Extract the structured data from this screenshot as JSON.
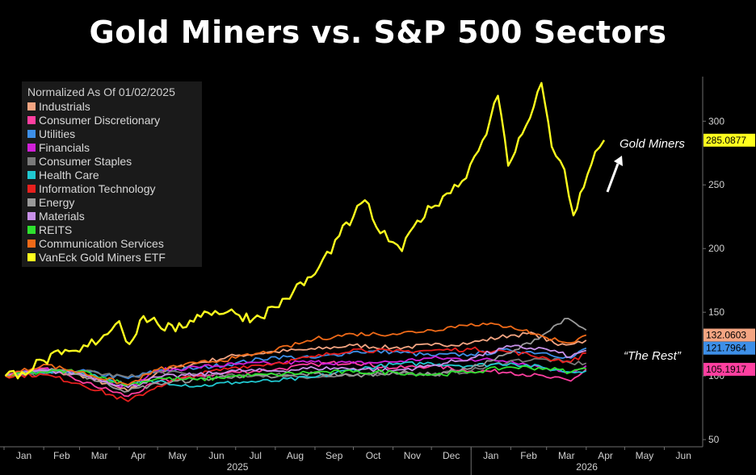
{
  "title": "Gold Miners vs. S&P 500 Sectors",
  "colors": {
    "background": "#000000",
    "axis": "#6e6e6e",
    "text": "#d0d0d0"
  },
  "annotations": {
    "gold_miners": "Gold Miners",
    "the_rest": "“The Rest”"
  },
  "chart_data": {
    "type": "line",
    "legend_title": "Normalized As Of 01/02/2025",
    "legend_position": "top-left",
    "grid": false,
    "x_ticks": [
      "Jan",
      "Feb",
      "Mar",
      "Apr",
      "May",
      "Jun",
      "Jul",
      "Aug",
      "Sep",
      "Oct",
      "Nov",
      "Dec",
      "Jan",
      "Feb",
      "Mar",
      "Apr",
      "May",
      "Jun"
    ],
    "x_year_labels": [
      "2025",
      "2026"
    ],
    "y_ticks": [
      50,
      100,
      150,
      200,
      250,
      300
    ],
    "ylim": [
      45,
      335
    ],
    "xlim": [
      "2025-01-01",
      "2026-07-01"
    ],
    "end_labels": [
      "285.0877",
      "132.0603",
      "121.7964",
      "105.1917"
    ],
    "series": [
      {
        "name": "Industrials",
        "color": "#f4a582",
        "values": [
          [
            "2025-01-02",
            100
          ],
          [
            "2025-02-01",
            103
          ],
          [
            "2025-03-01",
            101
          ],
          [
            "2025-04-08",
            88
          ],
          [
            "2025-05-01",
            103
          ],
          [
            "2025-06-01",
            110
          ],
          [
            "2025-07-01",
            116
          ],
          [
            "2025-08-01",
            119
          ],
          [
            "2025-09-01",
            121
          ],
          [
            "2025-10-01",
            124
          ],
          [
            "2025-11-01",
            122
          ],
          [
            "2025-12-01",
            124
          ],
          [
            "2026-01-01",
            126
          ],
          [
            "2026-02-01",
            132
          ],
          [
            "2026-02-20",
            133
          ],
          [
            "2026-03-10",
            124
          ],
          [
            "2026-04-01",
            128
          ]
        ]
      },
      {
        "name": "Consumer Discretionary",
        "color": "#ff3fa0",
        "values": [
          [
            "2025-01-02",
            100
          ],
          [
            "2025-02-01",
            106
          ],
          [
            "2025-03-01",
            96
          ],
          [
            "2025-04-08",
            84
          ],
          [
            "2025-05-01",
            95
          ],
          [
            "2025-06-01",
            100
          ],
          [
            "2025-07-01",
            103
          ],
          [
            "2025-08-01",
            105
          ],
          [
            "2025-09-01",
            109
          ],
          [
            "2025-10-01",
            111
          ],
          [
            "2025-11-01",
            106
          ],
          [
            "2025-12-01",
            108
          ],
          [
            "2026-01-01",
            104
          ],
          [
            "2026-02-01",
            103
          ],
          [
            "2026-03-01",
            99
          ],
          [
            "2026-03-20",
            96
          ],
          [
            "2026-04-01",
            105.19
          ]
        ]
      },
      {
        "name": "Utilities",
        "color": "#3d8fe8",
        "values": [
          [
            "2025-01-02",
            100
          ],
          [
            "2025-02-01",
            102
          ],
          [
            "2025-03-01",
            104
          ],
          [
            "2025-04-08",
            98
          ],
          [
            "2025-05-01",
            104
          ],
          [
            "2025-06-01",
            106
          ],
          [
            "2025-07-01",
            110
          ],
          [
            "2025-08-01",
            115
          ],
          [
            "2025-09-01",
            114
          ],
          [
            "2025-10-01",
            119
          ],
          [
            "2025-11-01",
            119
          ],
          [
            "2025-12-01",
            116
          ],
          [
            "2026-01-01",
            117
          ],
          [
            "2026-02-01",
            120
          ],
          [
            "2026-03-01",
            118
          ],
          [
            "2026-03-20",
            114
          ],
          [
            "2026-04-01",
            121.8
          ]
        ]
      },
      {
        "name": "Financials",
        "color": "#d020d8",
        "values": [
          [
            "2025-01-02",
            100
          ],
          [
            "2025-02-01",
            105
          ],
          [
            "2025-03-01",
            103
          ],
          [
            "2025-04-08",
            91
          ],
          [
            "2025-05-01",
            104
          ],
          [
            "2025-06-01",
            107
          ],
          [
            "2025-07-01",
            109
          ],
          [
            "2025-08-01",
            110
          ],
          [
            "2025-09-01",
            111
          ],
          [
            "2025-10-01",
            110
          ],
          [
            "2025-11-01",
            111
          ],
          [
            "2025-12-01",
            114
          ],
          [
            "2026-01-01",
            113
          ],
          [
            "2026-02-01",
            112
          ],
          [
            "2026-03-01",
            106
          ],
          [
            "2026-03-20",
            103
          ],
          [
            "2026-04-01",
            108
          ]
        ]
      },
      {
        "name": "Consumer Staples",
        "color": "#7a7a7a",
        "values": [
          [
            "2025-01-02",
            100
          ],
          [
            "2025-02-01",
            101
          ],
          [
            "2025-03-01",
            104
          ],
          [
            "2025-04-08",
            99
          ],
          [
            "2025-05-01",
            103
          ],
          [
            "2025-06-01",
            101
          ],
          [
            "2025-07-01",
            100
          ],
          [
            "2025-08-01",
            101
          ],
          [
            "2025-09-01",
            99
          ],
          [
            "2025-10-01",
            100
          ],
          [
            "2025-11-01",
            103
          ],
          [
            "2025-12-01",
            101
          ],
          [
            "2026-01-01",
            104
          ],
          [
            "2026-02-01",
            112
          ],
          [
            "2026-03-01",
            113
          ],
          [
            "2026-03-20",
            110
          ],
          [
            "2026-04-01",
            110
          ]
        ]
      },
      {
        "name": "Health Care",
        "color": "#20c8d0",
        "values": [
          [
            "2025-01-02",
            100
          ],
          [
            "2025-02-01",
            104
          ],
          [
            "2025-03-01",
            103
          ],
          [
            "2025-04-08",
            93
          ],
          [
            "2025-05-01",
            96
          ],
          [
            "2025-06-01",
            92
          ],
          [
            "2025-07-01",
            95
          ],
          [
            "2025-08-01",
            96
          ],
          [
            "2025-09-01",
            99
          ],
          [
            "2025-10-01",
            105
          ],
          [
            "2025-11-01",
            109
          ],
          [
            "2025-12-01",
            110
          ],
          [
            "2026-01-01",
            108
          ],
          [
            "2026-02-01",
            110
          ],
          [
            "2026-03-01",
            106
          ],
          [
            "2026-03-20",
            103
          ],
          [
            "2026-04-01",
            104
          ]
        ]
      },
      {
        "name": "Information Technology",
        "color": "#e8201e",
        "values": [
          [
            "2025-01-02",
            100
          ],
          [
            "2025-02-01",
            101
          ],
          [
            "2025-03-01",
            94
          ],
          [
            "2025-04-08",
            80
          ],
          [
            "2025-05-01",
            92
          ],
          [
            "2025-06-01",
            101
          ],
          [
            "2025-07-01",
            107
          ],
          [
            "2025-08-01",
            110
          ],
          [
            "2025-09-01",
            115
          ],
          [
            "2025-10-01",
            121
          ],
          [
            "2025-11-01",
            119
          ],
          [
            "2025-12-01",
            120
          ],
          [
            "2026-01-01",
            121
          ],
          [
            "2026-02-01",
            119
          ],
          [
            "2026-03-01",
            114
          ],
          [
            "2026-03-20",
            111
          ],
          [
            "2026-04-01",
            118
          ]
        ]
      },
      {
        "name": "Energy",
        "color": "#9a9a9a",
        "values": [
          [
            "2025-01-02",
            100
          ],
          [
            "2025-02-01",
            105
          ],
          [
            "2025-03-01",
            101
          ],
          [
            "2025-04-08",
            88
          ],
          [
            "2025-05-01",
            94
          ],
          [
            "2025-06-01",
            97
          ],
          [
            "2025-07-01",
            100
          ],
          [
            "2025-08-01",
            99
          ],
          [
            "2025-09-01",
            102
          ],
          [
            "2025-10-01",
            100
          ],
          [
            "2025-11-01",
            103
          ],
          [
            "2025-12-01",
            101
          ],
          [
            "2026-01-01",
            106
          ],
          [
            "2026-02-01",
            118
          ],
          [
            "2026-03-01",
            134
          ],
          [
            "2026-03-15",
            145
          ],
          [
            "2026-04-01",
            136
          ]
        ]
      },
      {
        "name": "Materials",
        "color": "#c890e8",
        "values": [
          [
            "2025-01-02",
            100
          ],
          [
            "2025-02-01",
            104
          ],
          [
            "2025-03-01",
            102
          ],
          [
            "2025-04-08",
            91
          ],
          [
            "2025-05-01",
            99
          ],
          [
            "2025-06-01",
            101
          ],
          [
            "2025-07-01",
            104
          ],
          [
            "2025-08-01",
            104
          ],
          [
            "2025-09-01",
            106
          ],
          [
            "2025-10-01",
            106
          ],
          [
            "2025-11-01",
            104
          ],
          [
            "2025-12-01",
            108
          ],
          [
            "2026-01-01",
            114
          ],
          [
            "2026-02-01",
            123
          ],
          [
            "2026-03-01",
            121
          ],
          [
            "2026-03-20",
            115
          ],
          [
            "2026-04-01",
            120
          ]
        ]
      },
      {
        "name": "REITS",
        "color": "#2ee02e",
        "values": [
          [
            "2025-01-02",
            100
          ],
          [
            "2025-02-01",
            103
          ],
          [
            "2025-03-01",
            104
          ],
          [
            "2025-04-08",
            93
          ],
          [
            "2025-05-01",
            98
          ],
          [
            "2025-06-01",
            97
          ],
          [
            "2025-07-01",
            100
          ],
          [
            "2025-08-01",
            101
          ],
          [
            "2025-09-01",
            103
          ],
          [
            "2025-10-01",
            103
          ],
          [
            "2025-11-01",
            103
          ],
          [
            "2025-12-01",
            101
          ],
          [
            "2026-01-01",
            103
          ],
          [
            "2026-02-01",
            107
          ],
          [
            "2026-03-01",
            106
          ],
          [
            "2026-03-20",
            103
          ],
          [
            "2026-04-01",
            106
          ]
        ]
      },
      {
        "name": "Communication Services",
        "color": "#f06a18",
        "values": [
          [
            "2025-01-02",
            100
          ],
          [
            "2025-02-01",
            109
          ],
          [
            "2025-03-01",
            103
          ],
          [
            "2025-04-08",
            93
          ],
          [
            "2025-05-01",
            105
          ],
          [
            "2025-06-01",
            110
          ],
          [
            "2025-07-01",
            114
          ],
          [
            "2025-08-01",
            120
          ],
          [
            "2025-09-01",
            129
          ],
          [
            "2025-10-01",
            133
          ],
          [
            "2025-11-01",
            133
          ],
          [
            "2025-12-01",
            136
          ],
          [
            "2026-01-01",
            141
          ],
          [
            "2026-02-01",
            139
          ],
          [
            "2026-03-01",
            130
          ],
          [
            "2026-03-20",
            126
          ],
          [
            "2026-04-01",
            132.06
          ]
        ]
      },
      {
        "name": "VanEck Gold Miners ETF",
        "color": "#ffff1e",
        "values": [
          [
            "2025-01-02",
            100
          ],
          [
            "2025-01-15",
            103
          ],
          [
            "2025-02-01",
            112
          ],
          [
            "2025-02-15",
            117
          ],
          [
            "2025-03-01",
            119
          ],
          [
            "2025-03-20",
            132
          ],
          [
            "2025-04-01",
            143
          ],
          [
            "2025-04-09",
            125
          ],
          [
            "2025-04-20",
            147
          ],
          [
            "2025-05-01",
            141
          ],
          [
            "2025-05-15",
            135
          ],
          [
            "2025-06-01",
            148
          ],
          [
            "2025-06-15",
            151
          ],
          [
            "2025-07-01",
            149
          ],
          [
            "2025-07-15",
            145
          ],
          [
            "2025-08-01",
            154
          ],
          [
            "2025-08-15",
            166
          ],
          [
            "2025-09-01",
            180
          ],
          [
            "2025-09-20",
            210
          ],
          [
            "2025-10-01",
            225
          ],
          [
            "2025-10-10",
            238
          ],
          [
            "2025-10-22",
            212
          ],
          [
            "2025-11-01",
            205
          ],
          [
            "2025-11-08",
            198
          ],
          [
            "2025-11-20",
            222
          ],
          [
            "2025-12-01",
            232
          ],
          [
            "2025-12-10",
            241
          ],
          [
            "2025-12-25",
            253
          ],
          [
            "2026-01-10",
            285
          ],
          [
            "2026-01-22",
            320
          ],
          [
            "2026-01-30",
            265
          ],
          [
            "2026-02-10",
            290
          ],
          [
            "2026-02-25",
            330
          ],
          [
            "2026-03-05",
            280
          ],
          [
            "2026-03-15",
            262
          ],
          [
            "2026-03-22",
            226
          ],
          [
            "2026-03-30",
            248
          ],
          [
            "2026-04-08",
            276
          ],
          [
            "2026-04-15",
            285.09
          ]
        ]
      }
    ]
  },
  "legend_items": [
    "Industrials",
    "Consumer Discretionary",
    "Utilities",
    "Financials",
    "Consumer Staples",
    "Health Care",
    "Information Technology",
    "Energy",
    "Materials",
    "REITS",
    "Communication Services",
    "VanEck Gold Miners ETF"
  ]
}
